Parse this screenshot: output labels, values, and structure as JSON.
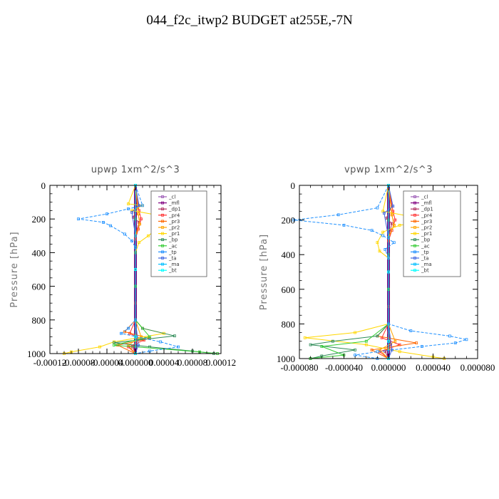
{
  "title": "044_f2c_itwp2  BUDGET at255E,-7N",
  "chart_data": [
    {
      "type": "line",
      "title": "upwp   1xm^2/s^3",
      "ylabel": "Pressure  [hPa]",
      "xlabel": "",
      "xlim": [
        -0.00012,
        0.00012
      ],
      "ylim": [
        1000,
        0
      ],
      "xticks": [
        -0.00012,
        -8e-05,
        -4e-05,
        0.0,
        4e-05,
        8e-05,
        0.00012
      ],
      "xtick_labels": [
        "-0.00012",
        "-0.00008",
        "-0.00004",
        "0.000000",
        "0.00004",
        "0.00008",
        "0.00012"
      ],
      "yticks": [
        0,
        200,
        400,
        600,
        800,
        1000
      ],
      "ytick_labels": [
        "0",
        "200",
        "400",
        "600",
        "800",
        "1000"
      ],
      "legend_position": "top-right",
      "series": [
        {
          "name": "_cl",
          "color": "#9b59b6",
          "x": [
            0,
            0,
            0,
            0,
            0,
            0,
            0,
            0,
            0,
            0,
            0
          ],
          "y": [
            0,
            100,
            200,
            300,
            400,
            500,
            600,
            700,
            800,
            900,
            1000
          ]
        },
        {
          "name": "_mfl",
          "color": "#800080",
          "x": [
            0,
            0,
            0,
            0,
            0,
            0,
            0,
            0,
            0,
            0,
            0
          ],
          "y": [
            0,
            100,
            200,
            300,
            400,
            500,
            600,
            700,
            800,
            900,
            1000
          ]
        },
        {
          "name": "_dp1",
          "color": "#b03060",
          "x": [
            0,
            4e-06,
            -3e-06,
            5e-06,
            0,
            0,
            0,
            0,
            2e-06,
            -4e-06,
            0
          ],
          "y": [
            0,
            120,
            190,
            220,
            300,
            500,
            700,
            850,
            920,
            960,
            1000
          ]
        },
        {
          "name": "_pr4",
          "color": "#ff3030",
          "x": [
            0,
            5e-06,
            8e-06,
            4e-06,
            0,
            0,
            0,
            -8e-06,
            1.2e-05,
            -1e-05,
            0
          ],
          "y": [
            0,
            150,
            200,
            260,
            320,
            600,
            800,
            880,
            920,
            960,
            1000
          ]
        },
        {
          "name": "_pr3",
          "color": "#ff6600",
          "x": [
            0,
            4e-06,
            6e-06,
            0,
            0,
            0,
            -1.5e-05,
            2e-05,
            -2.5e-05,
            0
          ],
          "y": [
            0,
            170,
            230,
            300,
            500,
            800,
            870,
            910,
            950,
            1000
          ]
        },
        {
          "name": "_pr2",
          "color": "#ffa500",
          "x": [
            0,
            4e-06,
            6e-06,
            0,
            0,
            0,
            8e-06,
            -1e-05,
            0
          ],
          "y": [
            0,
            170,
            230,
            300,
            500,
            800,
            900,
            950,
            1000
          ]
        },
        {
          "name": "_pr1",
          "color": "#ffd700",
          "x": [
            0,
            -1e-05,
            1e-05,
            -5e-06,
            3.5e-05,
            4.2e-05,
            3e-05,
            1.8e-05,
            5e-06,
            0,
            0,
            1e-05,
            4e-05,
            -3e-05,
            -5e-05,
            -9e-05,
            -0.0001
          ],
          "y": [
            0,
            110,
            120,
            150,
            180,
            210,
            260,
            300,
            340,
            400,
            800,
            850,
            880,
            930,
            960,
            990,
            1000
          ]
        },
        {
          "name": "_bp",
          "color": "#2e8b57",
          "x": [
            0,
            0,
            0,
            0,
            0,
            1e-05,
            5.5e-05,
            -3e-05,
            2e-05,
            8e-05,
            0.00011
          ],
          "y": [
            0,
            200,
            400,
            600,
            800,
            850,
            895,
            935,
            960,
            985,
            1000
          ]
        },
        {
          "name": "_ac",
          "color": "#33cc33",
          "x": [
            0,
            0,
            0,
            0,
            2e-05,
            -3e-05,
            9e-05,
            0.000115
          ],
          "y": [
            0,
            300,
            600,
            800,
            900,
            950,
            990,
            1000
          ]
        },
        {
          "name": "_tp",
          "color": "#1e90ff",
          "x": [
            0,
            1e-05,
            -1e-05,
            -4e-05,
            -8e-05,
            -4.5e-05,
            -3.5e-05,
            -1.5e-05,
            -5e-06,
            0,
            0,
            -1e-05,
            -2e-05,
            3.5e-05,
            6e-05,
            2e-05,
            0
          ],
          "y": [
            0,
            120,
            140,
            170,
            200,
            220,
            240,
            290,
            330,
            370,
            800,
            850,
            880,
            930,
            960,
            985,
            1000
          ]
        },
        {
          "name": "_ta",
          "color": "#4169e1",
          "x": [
            0,
            5e-06,
            -5e-06,
            0,
            0,
            4e-06,
            0
          ],
          "y": [
            0,
            120,
            160,
            300,
            800,
            950,
            1000
          ]
        },
        {
          "name": "_ma",
          "color": "#00bfff",
          "x": [
            0,
            0,
            0,
            0
          ],
          "y": [
            0,
            500,
            900,
            1000
          ]
        },
        {
          "name": "_bt",
          "color": "#00ffff",
          "x": [
            0,
            0,
            0,
            0
          ],
          "y": [
            0,
            500,
            900,
            1000
          ]
        }
      ],
      "legend": [
        "_cl",
        "_mfl",
        "_dp1",
        "_pr4",
        "_pr3",
        "_pr2",
        "_pr1",
        "_bp",
        "_ac",
        "_tp",
        "_ta",
        "_ma",
        "_bt"
      ]
    },
    {
      "type": "line",
      "title": "vpwp   1xm^2/s^3",
      "ylabel": "Pressure  [hPa]",
      "xlabel": "",
      "xlim": [
        -8e-05,
        8e-05
      ],
      "ylim": [
        1000,
        0
      ],
      "xticks": [
        -8e-05,
        -4e-05,
        0.0,
        4e-05,
        8e-05
      ],
      "xtick_labels": [
        "-0.000080",
        "-0.000040",
        "0.000000",
        "0.000040",
        "0.000080"
      ],
      "yticks": [
        0,
        200,
        400,
        600,
        800,
        1000
      ],
      "ytick_labels": [
        "0",
        "200",
        "400",
        "600",
        "800",
        "1000"
      ],
      "legend_position": "top-right",
      "series": [
        {
          "name": "_cl",
          "color": "#9b59b6",
          "x": [
            0,
            0,
            0,
            0,
            0,
            0,
            0,
            0,
            0,
            0,
            0
          ],
          "y": [
            0,
            100,
            200,
            300,
            400,
            500,
            600,
            700,
            800,
            900,
            1000
          ]
        },
        {
          "name": "_mfl",
          "color": "#800080",
          "x": [
            0,
            0,
            0,
            0,
            0,
            0,
            0,
            0,
            0,
            0,
            0
          ],
          "y": [
            0,
            100,
            200,
            300,
            400,
            500,
            600,
            700,
            800,
            900,
            1000
          ]
        },
        {
          "name": "_dp1",
          "color": "#b03060",
          "x": [
            0,
            3e-06,
            -2e-06,
            3e-06,
            0,
            0,
            0,
            0,
            2e-06,
            -3e-06,
            0
          ],
          "y": [
            0,
            120,
            190,
            220,
            300,
            500,
            700,
            850,
            920,
            960,
            1000
          ]
        },
        {
          "name": "_pr4",
          "color": "#ff3030",
          "x": [
            0,
            4e-06,
            6e-06,
            3e-06,
            0,
            0,
            0,
            -6e-06,
            1e-05,
            -8e-06,
            0
          ],
          "y": [
            0,
            150,
            200,
            260,
            320,
            600,
            800,
            880,
            920,
            960,
            1000
          ]
        },
        {
          "name": "_pr3",
          "color": "#ff6600",
          "x": [
            0,
            3e-06,
            5e-06,
            0,
            0,
            0,
            -1e-05,
            2.5e-05,
            -1.5e-05,
            0
          ],
          "y": [
            0,
            170,
            230,
            300,
            500,
            800,
            870,
            910,
            950,
            1000
          ]
        },
        {
          "name": "_pr2",
          "color": "#ffa500",
          "x": [
            0,
            3e-06,
            5e-06,
            0,
            0,
            0,
            6e-06,
            -8e-06,
            0
          ],
          "y": [
            0,
            170,
            230,
            300,
            500,
            800,
            900,
            950,
            1000
          ]
        },
        {
          "name": "_pr1",
          "color": "#ffd700",
          "x": [
            0,
            -5e-06,
            2e-05,
            4.5e-05,
            1e-05,
            -5e-06,
            -1e-05,
            -8e-06,
            0,
            0,
            -3e-05,
            -7.5e-05,
            -2e-05,
            1e-05,
            4e-05,
            5e-05
          ],
          "y": [
            0,
            150,
            180,
            205,
            230,
            270,
            330,
            380,
            420,
            800,
            850,
            880,
            920,
            960,
            990,
            1000
          ]
        },
        {
          "name": "_bp",
          "color": "#2e8b57",
          "x": [
            0,
            0,
            0,
            0,
            0,
            -1e-05,
            -5e-05,
            -7e-05,
            -3e-05,
            -6e-05,
            -7e-05
          ],
          "y": [
            0,
            200,
            400,
            600,
            800,
            870,
            900,
            920,
            950,
            985,
            1000
          ]
        },
        {
          "name": "_ac",
          "color": "#33cc33",
          "x": [
            0,
            0,
            0,
            0,
            -2e-05,
            -6e-05,
            -4e-05,
            -7e-05
          ],
          "y": [
            0,
            300,
            600,
            800,
            900,
            930,
            980,
            1000
          ]
        },
        {
          "name": "_tp",
          "color": "#1e90ff",
          "x": [
            0,
            -1e-05,
            -4.5e-05,
            -8.5e-05,
            -4e-05,
            -1.5e-05,
            -5e-06,
            5e-06,
            -3e-06,
            0,
            0,
            2e-05,
            5.5e-05,
            7e-05,
            6e-05,
            3e-05,
            -1e-05,
            -3e-05,
            -1e-05
          ],
          "y": [
            0,
            130,
            170,
            200,
            230,
            260,
            290,
            330,
            370,
            420,
            800,
            840,
            870,
            890,
            910,
            930,
            960,
            980,
            1000
          ]
        },
        {
          "name": "_ta",
          "color": "#4169e1",
          "x": [
            0,
            4e-06,
            -4e-06,
            0,
            0,
            3e-06,
            0
          ],
          "y": [
            0,
            120,
            160,
            300,
            800,
            950,
            1000
          ]
        },
        {
          "name": "_ma",
          "color": "#00bfff",
          "x": [
            0,
            0,
            0,
            0
          ],
          "y": [
            0,
            500,
            900,
            1000
          ]
        },
        {
          "name": "_bt",
          "color": "#00ffff",
          "x": [
            0,
            0,
            0,
            0
          ],
          "y": [
            0,
            500,
            900,
            1000
          ]
        }
      ],
      "legend": [
        "_cl",
        "_mfl",
        "_dp1",
        "_pr4",
        "_pr3",
        "_pr2",
        "_pr1",
        "_bp",
        "_ac",
        "_tp",
        "_ta",
        "_ma",
        "_bt"
      ]
    }
  ]
}
